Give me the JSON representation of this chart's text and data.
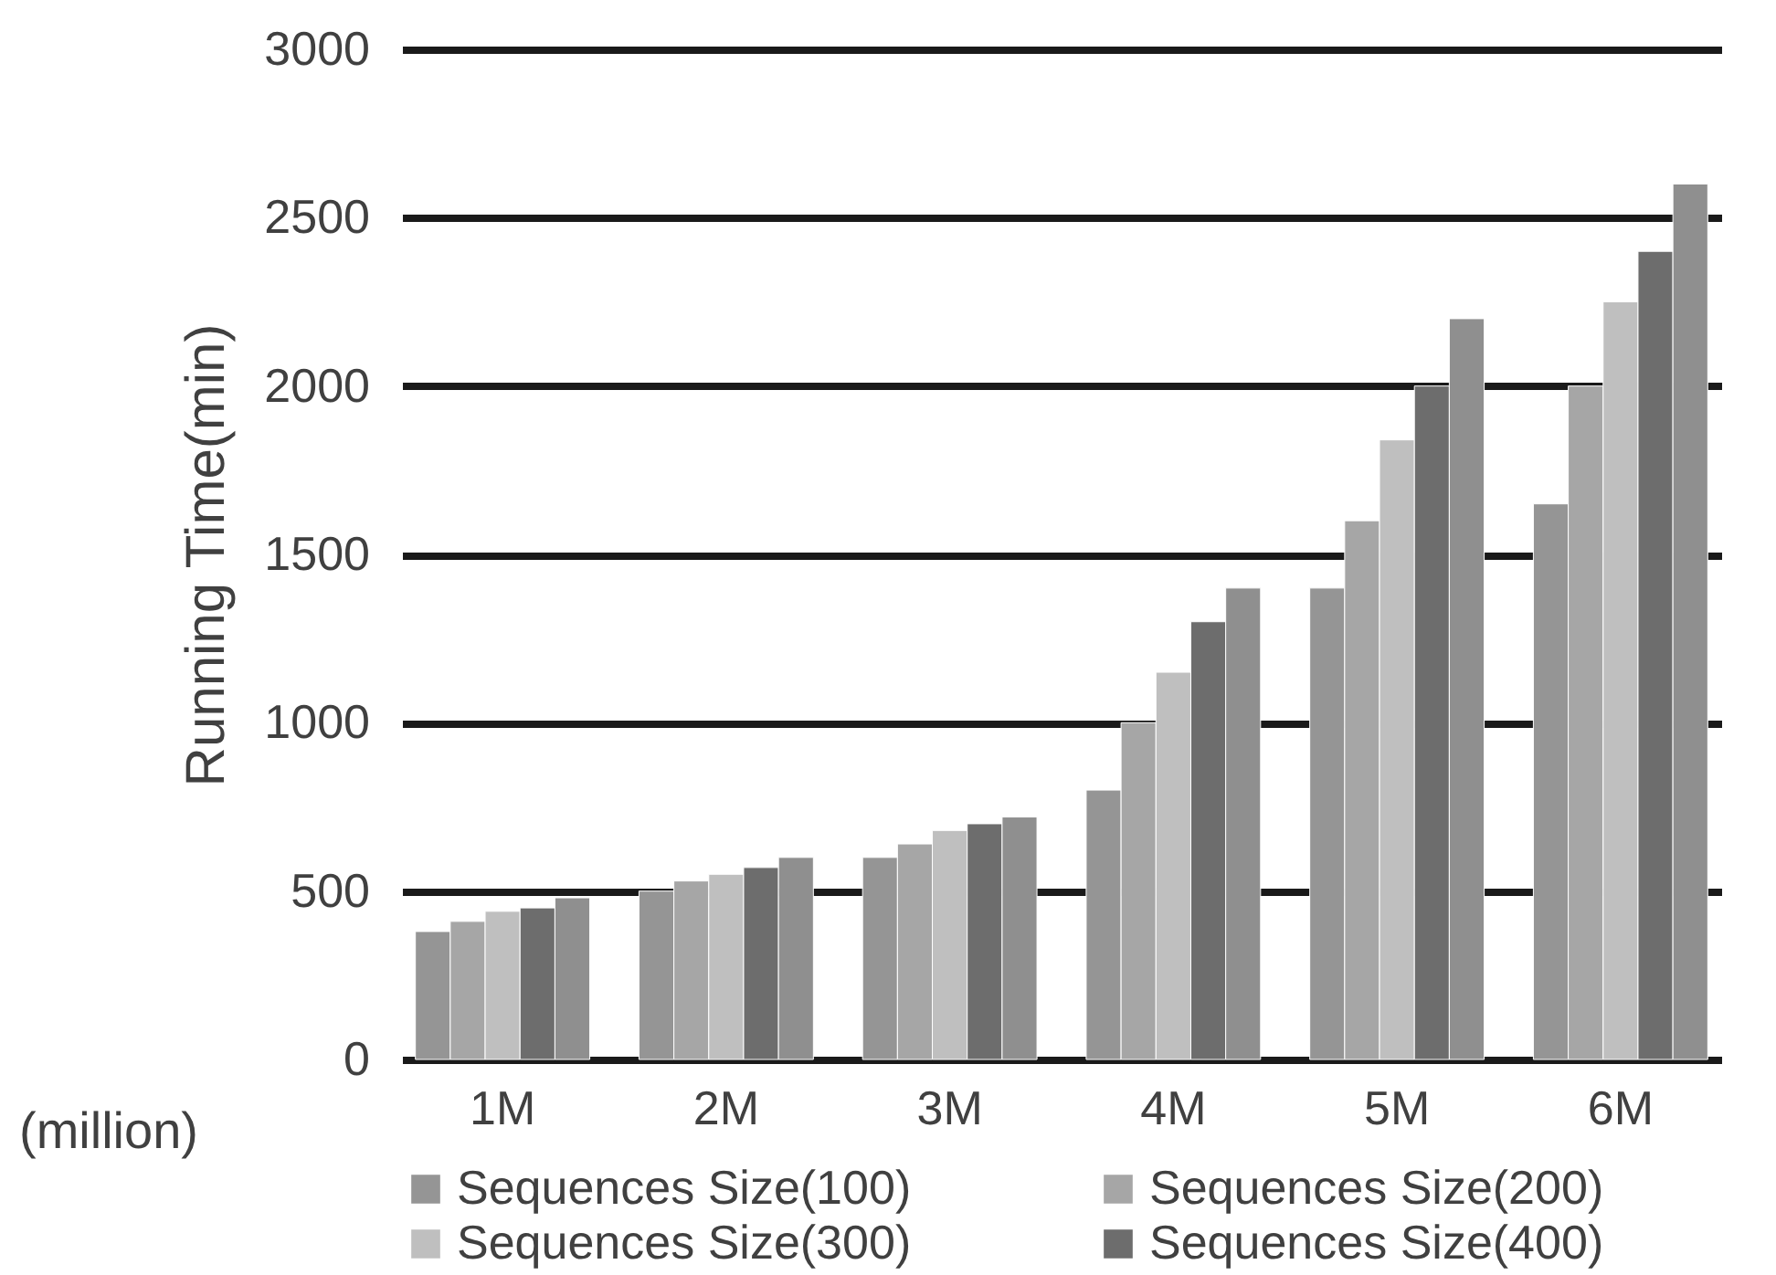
{
  "chart_data": {
    "type": "bar",
    "ylabel": "Running Time(min)",
    "xlabel": "(million)",
    "categories": [
      "1M",
      "2M",
      "3M",
      "4M",
      "5M",
      "6M"
    ],
    "ylim": [
      0,
      3000
    ],
    "yticks": [
      0,
      500,
      1000,
      1500,
      2000,
      2500,
      3000
    ],
    "grid": "y",
    "legend": "bottom",
    "series": [
      {
        "name": "Sequences Size(100)",
        "color": "#959595",
        "values": [
          380,
          500,
          600,
          800,
          1400,
          1650
        ]
      },
      {
        "name": "Sequences Size(200)",
        "color": "#a6a6a6",
        "values": [
          410,
          530,
          640,
          1000,
          1600,
          2000
        ]
      },
      {
        "name": "Sequences Size(300)",
        "color": "#bfbfbf",
        "values": [
          440,
          550,
          680,
          1150,
          1840,
          2250
        ]
      },
      {
        "name": "Sequences Size(400)",
        "color": "#6d6d6d",
        "values": [
          450,
          570,
          700,
          1300,
          2000,
          2400
        ]
      },
      {
        "color": "#8f8f8f",
        "values": [
          480,
          600,
          720,
          1400,
          2200,
          2600
        ]
      }
    ]
  }
}
